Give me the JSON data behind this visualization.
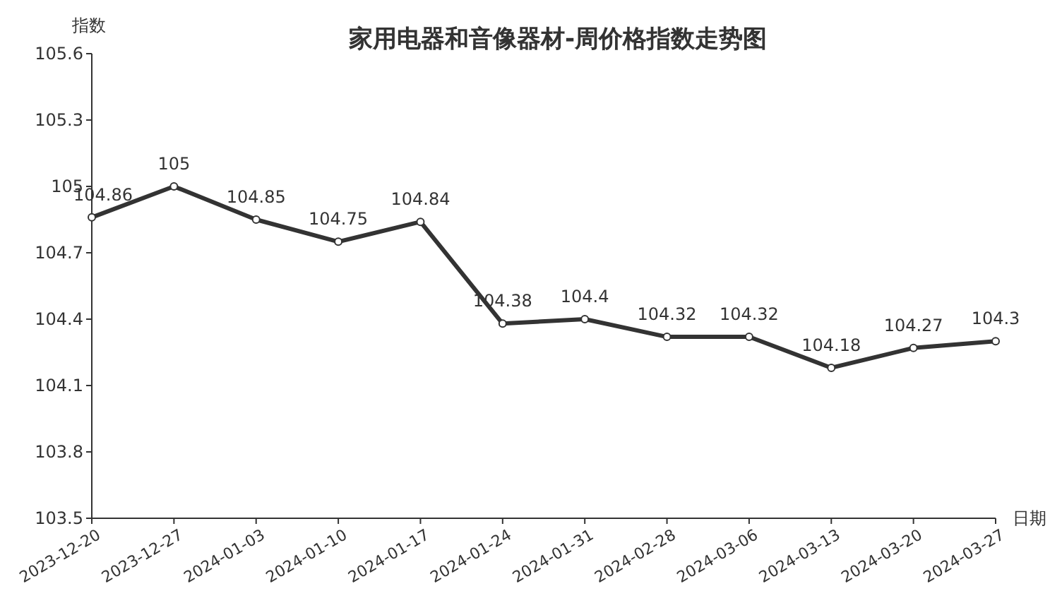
{
  "chart_data": {
    "type": "line",
    "title": "家用电器和音像器材-周价格指数走势图",
    "xlabel": "日期",
    "ylabel": "指数",
    "categories": [
      "2023-12-20",
      "2023-12-27",
      "2024-01-03",
      "2024-01-10",
      "2024-01-17",
      "2024-01-24",
      "2024-01-31",
      "2024-02-28",
      "2024-03-06",
      "2024-03-13",
      "2024-03-20",
      "2024-03-27"
    ],
    "series": [
      {
        "color": "#333333",
        "values": [
          104.86,
          105,
          104.85,
          104.75,
          104.84,
          104.38,
          104.4,
          104.32,
          104.32,
          104.18,
          104.27,
          104.3
        ]
      }
    ],
    "ylim": [
      103.5,
      105.6
    ],
    "yticks": [
      103.5,
      103.8,
      104.1,
      104.4,
      104.7,
      105,
      105.3,
      105.6
    ],
    "data_labels": true,
    "marker": "circle",
    "line_style": "solid",
    "grid": false
  }
}
